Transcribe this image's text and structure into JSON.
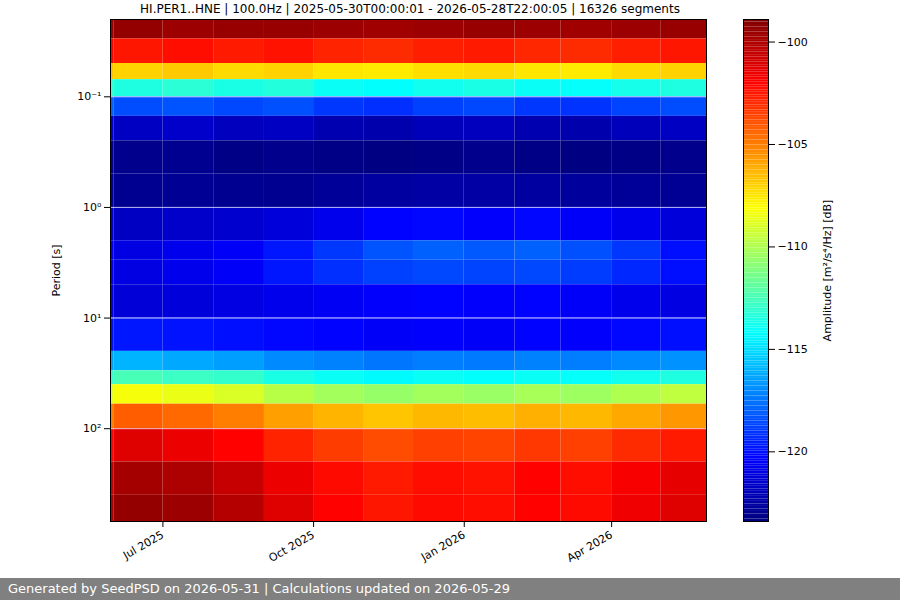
{
  "chart_data": {
    "type": "heatmap",
    "title": "HI.PER1..HNE | 100.0Hz | 2025-05-30T00:00:01 - 2026-05-28T22:00:05 | 16326 segments",
    "caption": "Generated by SeedPSD on 2026-05-31 | Calculations updated on 2026-05-29",
    "y_label": "Period [s]",
    "colorbar_label": "Amplitude [m²/s⁴/Hz] [dB]",
    "x": [
      "2025-05",
      "2025-06",
      "2025-07",
      "2025-08",
      "2025-09",
      "2025-10",
      "2025-11",
      "2025-12",
      "2026-01",
      "2026-02",
      "2026-03",
      "2026-04",
      "2026-05"
    ],
    "y_edges": [
      0.02,
      0.03,
      0.05,
      0.07,
      0.1,
      0.15,
      0.25,
      0.5,
      1,
      2,
      3,
      5,
      10,
      20,
      30,
      40,
      60,
      100,
      200,
      400,
      690
    ],
    "values": [
      [
        -99.5,
        -99.4,
        -99.6,
        -99.5,
        -99.5,
        -99.6,
        -99.7,
        -99.6,
        -99.5,
        -99.6,
        -99.7,
        -99.6,
        -99.5
      ],
      [
        -102,
        -102.5,
        -102.3,
        -102.6,
        -102.4,
        -102.8,
        -103,
        -102.7,
        -102.6,
        -102.9,
        -103,
        -102.7,
        -102.5
      ],
      [
        -106.5,
        -107,
        -106.8,
        -107.2,
        -107,
        -107.5,
        -107.6,
        -107.3,
        -107.2,
        -107.5,
        -107.6,
        -107.2,
        -107
      ],
      [
        -113,
        -113.5,
        -113.2,
        -113.6,
        -113.4,
        -114,
        -114.2,
        -113.8,
        -113.6,
        -114,
        -114.1,
        -113.7,
        -113.5
      ],
      [
        -118,
        -118.5,
        -118.3,
        -118.6,
        -118.4,
        -119,
        -119.2,
        -118.8,
        -118.6,
        -119,
        -119.1,
        -118.7,
        -118.5
      ],
      [
        -121.5,
        -121.8,
        -121.6,
        -121.9,
        -121.8,
        -122.2,
        -122.3,
        -122,
        -121.9,
        -122.2,
        -122.3,
        -122,
        -121.8
      ],
      [
        -123,
        -123.1,
        -123,
        -123.2,
        -123.1,
        -123.2,
        -123.3,
        -123.2,
        -123.1,
        -123.2,
        -123.3,
        -123.2,
        -123.1
      ],
      [
        -122.8,
        -123,
        -122.9,
        -123,
        -123,
        -122.8,
        -122.6,
        -122.5,
        -122.5,
        -122.6,
        -122.7,
        -122.8,
        -122.9
      ],
      [
        -121.5,
        -121.8,
        -121.6,
        -121.5,
        -121.2,
        -120.8,
        -120.3,
        -120.2,
        -120.4,
        -120.2,
        -120.5,
        -120.8,
        -121.2
      ],
      [
        -120.5,
        -121,
        -120.8,
        -120.5,
        -119.8,
        -119,
        -118.3,
        -118,
        -118.2,
        -118,
        -118.4,
        -119,
        -120
      ],
      [
        -120.5,
        -121,
        -120.8,
        -120.5,
        -119.8,
        -119.2,
        -118.8,
        -118.6,
        -118.7,
        -118.6,
        -118.9,
        -119.4,
        -120
      ],
      [
        -121,
        -121.3,
        -121.2,
        -121,
        -120.8,
        -120.6,
        -120.4,
        -120.3,
        -120.4,
        -120.3,
        -120.5,
        -120.8,
        -121
      ],
      [
        -120,
        -119.8,
        -119.9,
        -120,
        -120.2,
        -120.3,
        -120.5,
        -120.4,
        -120.5,
        -120.3,
        -120.4,
        -120.2,
        -120
      ],
      [
        -116.5,
        -116,
        -116.3,
        -116.5,
        -117,
        -117.2,
        -117.5,
        -117.3,
        -117.4,
        -117.2,
        -117.3,
        -117,
        -116.8
      ],
      [
        -113,
        -112.5,
        -112.8,
        -113,
        -113.6,
        -114,
        -114.3,
        -114,
        -114.2,
        -114,
        -114.1,
        -113.8,
        -113.5
      ],
      [
        -109,
        -108.3,
        -108.6,
        -109,
        -109.8,
        -110.3,
        -110.6,
        -110.3,
        -110.5,
        -110.2,
        -110.4,
        -110,
        -109.6
      ],
      [
        -105,
        -104.2,
        -104.5,
        -105,
        -105.8,
        -106.3,
        -106.7,
        -106.4,
        -106.5,
        -106.2,
        -106.4,
        -106,
        -105.6
      ],
      [
        -102,
        -101.2,
        -101.5,
        -102,
        -102.8,
        -103.4,
        -103.8,
        -103.5,
        -103.6,
        -103.3,
        -103.5,
        -103,
        -102.6
      ],
      [
        -100.5,
        -99.8,
        -100,
        -100.6,
        -101.5,
        -102.2,
        -102.6,
        -102.3,
        -102.4,
        -102,
        -102.3,
        -101.8,
        -101.4
      ],
      [
        -100,
        -99.4,
        -99.6,
        -100.2,
        -101.2,
        -102,
        -102.5,
        -102.2,
        -102.3,
        -102,
        -102.2,
        -101.6,
        -101.2
      ]
    ],
    "xlim": [
      "2025-05-30T00:00:01",
      "2026-05-28T22:00:05"
    ],
    "xticks": [
      {
        "value": "2025-07",
        "label": "Jul 2025"
      },
      {
        "value": "2025-10",
        "label": "Oct 2025"
      },
      {
        "value": "2026-01",
        "label": "Jan 2026"
      },
      {
        "value": "2026-04",
        "label": "Apr 2026"
      }
    ],
    "ylim": [
      0.02,
      690
    ],
    "yticks": [
      {
        "value": 0.1,
        "label": "10⁻¹"
      },
      {
        "value": 1,
        "label": "10⁰"
      },
      {
        "value": 10,
        "label": "10¹"
      },
      {
        "value": 100,
        "label": "10²"
      }
    ],
    "log": "y",
    "grid": true,
    "clim": [
      -123.4,
      -98.9
    ],
    "cticks": [
      -100,
      -105,
      -110,
      -115,
      -120
    ]
  }
}
